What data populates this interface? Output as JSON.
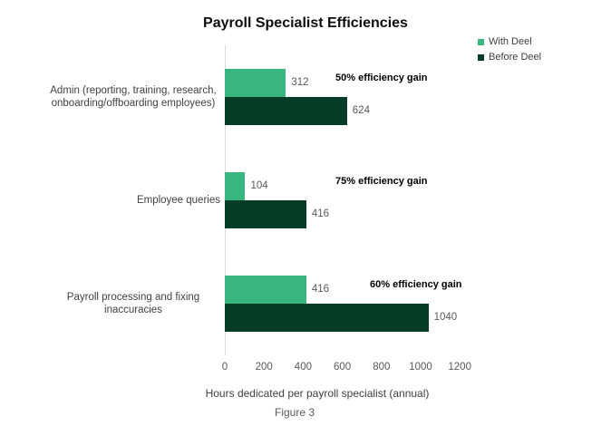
{
  "title": "Payroll Specialist Efficiencies",
  "legend": {
    "items": [
      {
        "label": "With Deel",
        "color": "#38b680"
      },
      {
        "label": "Before Deel",
        "color": "#043c28"
      }
    ]
  },
  "chart_data": {
    "type": "bar",
    "orientation": "horizontal",
    "title": "Payroll Specialist Efficiencies",
    "xlabel": "Hours dedicated per payroll specialist (annual)",
    "ylabel": "",
    "xlim": [
      0,
      1200
    ],
    "x_ticks": [
      "0",
      "200",
      "400",
      "600",
      "800",
      "1000",
      "1200"
    ],
    "grid": false,
    "legend_position": "top-right",
    "categories": [
      "Admin (reporting, training, research, onboarding/offboarding employees)",
      "Employee queries",
      "Payroll processing and fixing inaccuracies"
    ],
    "series": [
      {
        "name": "With Deel",
        "color": "#38b680",
        "values": [
          312,
          104,
          416
        ]
      },
      {
        "name": "Before Deel",
        "color": "#043c28",
        "values": [
          624,
          416,
          1040
        ]
      }
    ],
    "annotations": [
      "50% efficiency gain",
      "75% efficiency gain",
      "60% efficiency gain"
    ]
  },
  "caption": "Figure 3",
  "colors": {
    "axis_line": "#d9d9d9",
    "value_label": "#595959",
    "tick_label": "#595959",
    "category_label": "#404040"
  }
}
